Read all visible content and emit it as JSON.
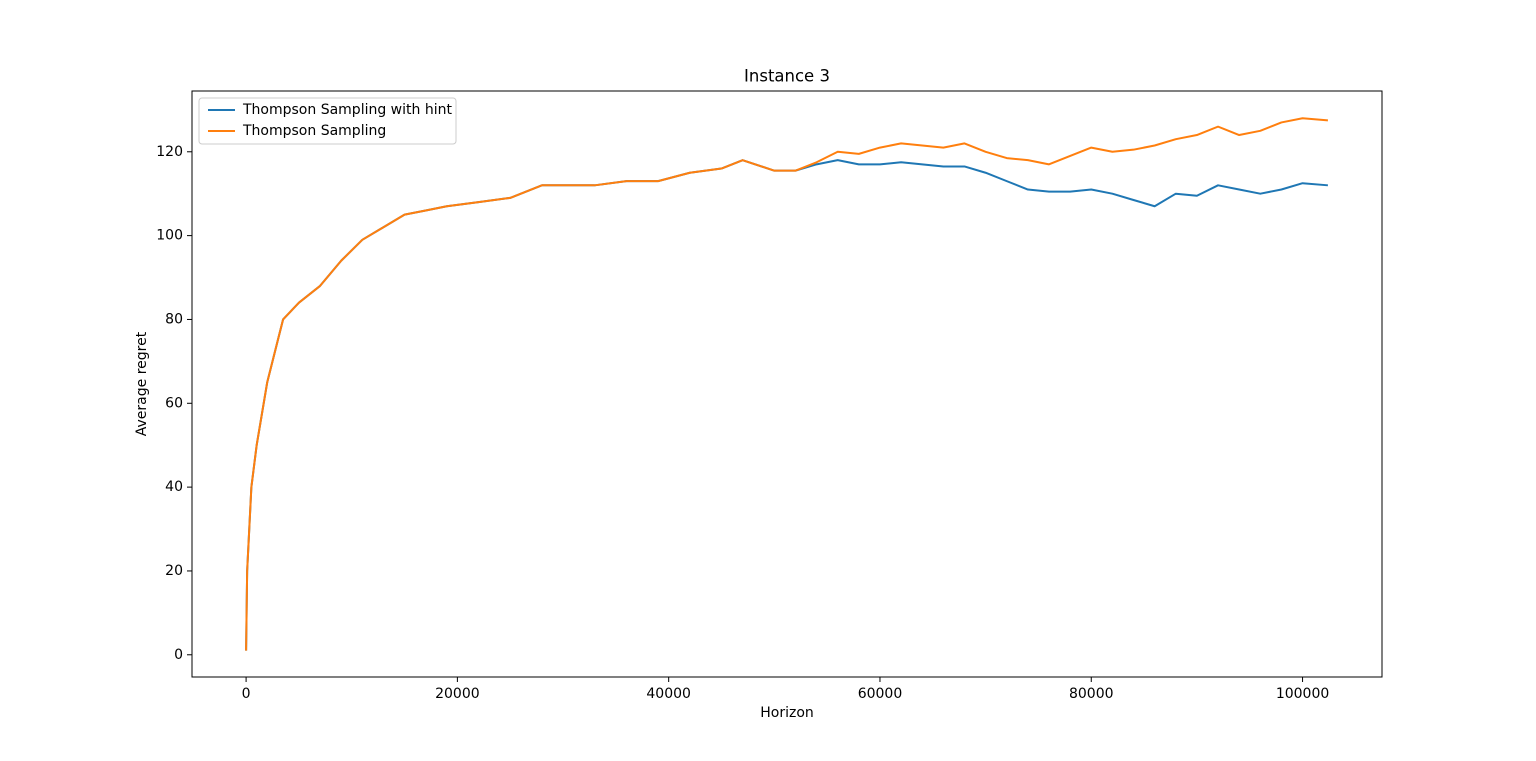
{
  "chart_data": {
    "type": "line",
    "title": "Instance 3",
    "xlabel": "Horizon",
    "ylabel": "Average regret",
    "legend": "upper left",
    "x": [
      0,
      100,
      500,
      1000,
      2000,
      3000,
      3500,
      5000,
      7000,
      9000,
      11000,
      13000,
      15000,
      17000,
      19000,
      22000,
      25000,
      28000,
      30000,
      33000,
      36000,
      39000,
      42000,
      45000,
      47000,
      50000,
      52000,
      54000,
      56000,
      58000,
      60000,
      62000,
      64000,
      66000,
      68000,
      70000,
      72000,
      74000,
      76000,
      78000,
      80000,
      82000,
      84000,
      86000,
      88000,
      90000,
      92000,
      94000,
      96000,
      98000,
      100000,
      102400
    ],
    "series": [
      {
        "name": "Thompson Sampling with hint",
        "color": "#1f77b4",
        "values": [
          1,
          20,
          40,
          50,
          65,
          75,
          80,
          84,
          88,
          94,
          99,
          102,
          105,
          106,
          107,
          108,
          109,
          112,
          112,
          112,
          113,
          113,
          115,
          116,
          118,
          115.5,
          115.5,
          117,
          118,
          117,
          117,
          117.5,
          117,
          116.5,
          116.5,
          115,
          113,
          111,
          110.5,
          110.5,
          111,
          110,
          108.5,
          107,
          110,
          109.5,
          112,
          111,
          110,
          111,
          112.5,
          112
        ]
      },
      {
        "name": "Thompson Sampling",
        "color": "#ff7f0e",
        "values": [
          1,
          20,
          40,
          50,
          65,
          75,
          80,
          84,
          88,
          94,
          99,
          102,
          105,
          106,
          107,
          108,
          109,
          112,
          112,
          112,
          113,
          113,
          115,
          116,
          118,
          115.5,
          115.5,
          117.5,
          120,
          119.5,
          121,
          122,
          121.5,
          121,
          122,
          120,
          118.5,
          118,
          117,
          119,
          121,
          120,
          120.5,
          121.5,
          123,
          124,
          126,
          124,
          125,
          127,
          128,
          127.5
        ]
      }
    ],
    "xlim": [
      -5120,
      107520
    ],
    "ylim": [
      -5.3,
      134.5
    ],
    "xticks": [
      0,
      20000,
      40000,
      60000,
      80000,
      100000
    ],
    "yticks": [
      0,
      20,
      40,
      60,
      80,
      100,
      120
    ]
  }
}
